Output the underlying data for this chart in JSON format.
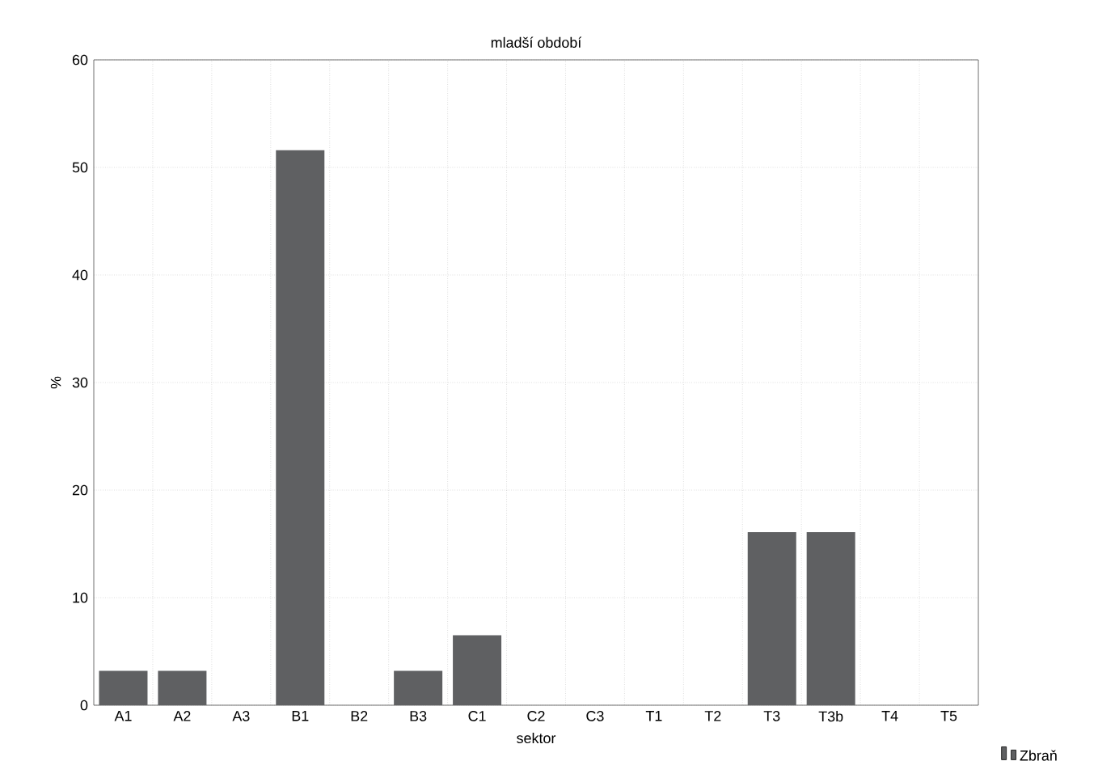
{
  "chart_data": {
    "type": "bar",
    "title": "mladší období",
    "xlabel": "sektor",
    "ylabel": "%",
    "categories": [
      "A1",
      "A2",
      "A3",
      "B1",
      "B2",
      "B3",
      "C1",
      "C2",
      "C3",
      "T1",
      "T2",
      "T3",
      "T3b",
      "T4",
      "T5"
    ],
    "series": [
      {
        "name": "Zbraň",
        "color": "#5f6062",
        "values": [
          3.2,
          3.2,
          0,
          51.6,
          0,
          3.2,
          6.5,
          0,
          0,
          0,
          0,
          16.1,
          16.1,
          0,
          0
        ]
      }
    ],
    "ylim": [
      0,
      60
    ],
    "yticks": [
      0,
      10,
      20,
      30,
      40,
      50,
      60
    ],
    "grid": true,
    "legend": "bottom right"
  }
}
